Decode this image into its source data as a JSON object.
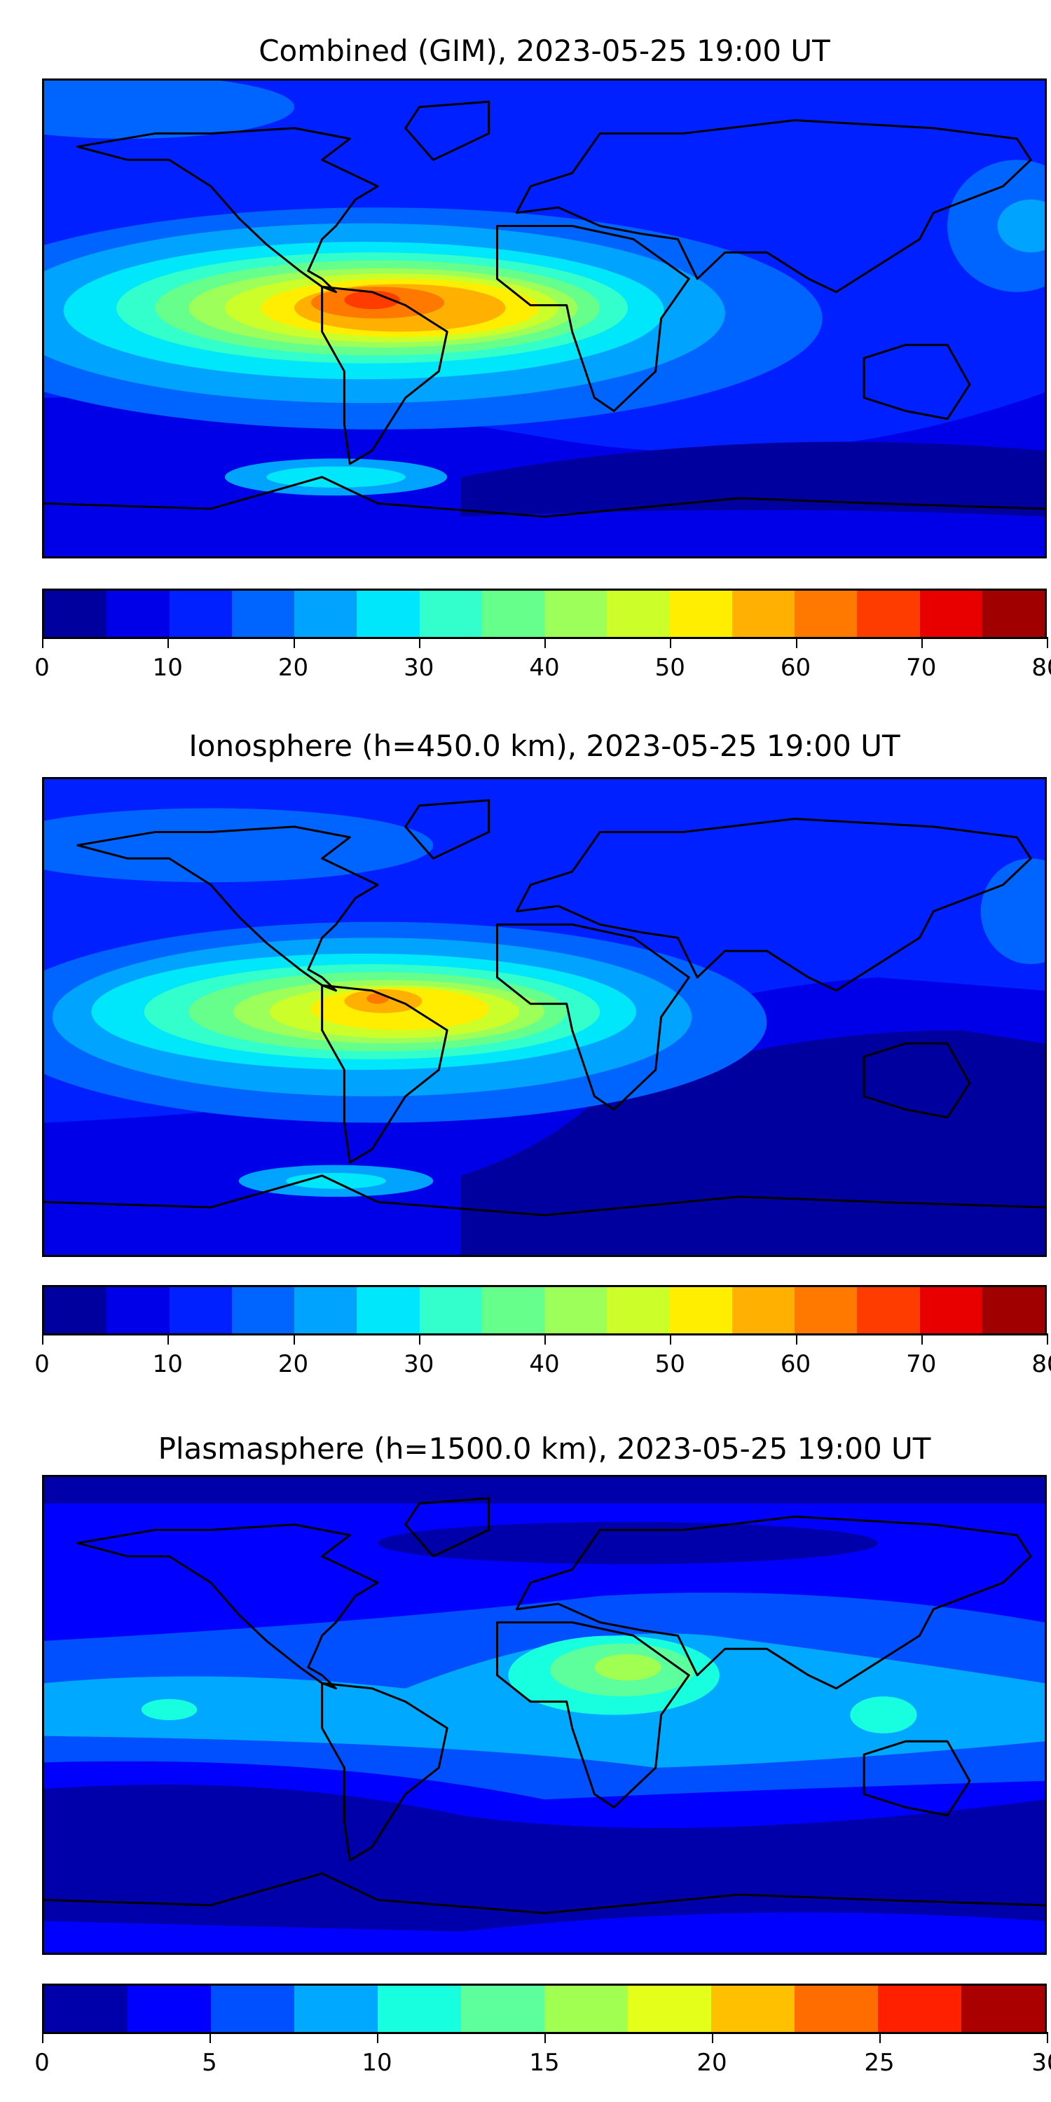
{
  "panels": [
    {
      "title": "Combined (GIM), 2023-05-25 19:00 UT",
      "colorbar": {
        "min": 0,
        "max": 80,
        "step": 5,
        "ticks": [
          "0",
          "10",
          "20",
          "30",
          "40",
          "50",
          "60",
          "70",
          "80"
        ],
        "colors": [
          "#00009f",
          "#0000e8",
          "#0020ff",
          "#0064ff",
          "#00a4ff",
          "#00e6fa",
          "#33ffcc",
          "#66ff8c",
          "#9cff5a",
          "#ccff2a",
          "#ffee00",
          "#ffb000",
          "#ff7800",
          "#ff3c00",
          "#e80000",
          "#a00000"
        ]
      }
    },
    {
      "title": "Ionosphere  (h=450.0 km), 2023-05-25 19:00 UT",
      "colorbar": {
        "min": 0,
        "max": 80,
        "step": 5,
        "ticks": [
          "0",
          "10",
          "20",
          "30",
          "40",
          "50",
          "60",
          "70",
          "80"
        ],
        "colors": [
          "#00009f",
          "#0000e8",
          "#0020ff",
          "#0064ff",
          "#00a4ff",
          "#00e6fa",
          "#33ffcc",
          "#66ff8c",
          "#9cff5a",
          "#ccff2a",
          "#ffee00",
          "#ffb000",
          "#ff7800",
          "#ff3c00",
          "#e80000",
          "#a00000"
        ]
      }
    },
    {
      "title": "Plasmasphere (h=1500.0 km), 2023-05-25 19:00 UT",
      "colorbar": {
        "min": 0,
        "max": 30,
        "step": 2.5,
        "ticks": [
          "0",
          "5",
          "10",
          "15",
          "20",
          "25",
          "30"
        ],
        "colors": [
          "#0000aa",
          "#0000ff",
          "#0050ff",
          "#00a8ff",
          "#18ffdf",
          "#5cff9c",
          "#a0ff50",
          "#e4ff1a",
          "#ffc000",
          "#ff6c00",
          "#ff2000",
          "#aa0000"
        ]
      }
    }
  ],
  "chart_data": [
    {
      "type": "heatmap",
      "title": "Combined (GIM), 2023-05-25 19:00 UT",
      "colorbar_range": [
        0,
        80
      ],
      "levels_step": 5,
      "peak_region": "South America / tropical Atlantic",
      "peak_level_range": [
        65,
        70
      ]
    },
    {
      "type": "heatmap",
      "title": "Ionosphere  (h=450.0 km), 2023-05-25 19:00 UT",
      "colorbar_range": [
        0,
        80
      ],
      "levels_step": 5,
      "peak_region": "Northern South America",
      "peak_level_range": [
        60,
        65
      ]
    },
    {
      "type": "heatmap",
      "title": "Plasmasphere (h=1500.0 km), 2023-05-25 19:00 UT",
      "colorbar_range": [
        0,
        30
      ],
      "levels_step": 2.5,
      "peak_region": "North Africa",
      "peak_level_range": [
        15,
        17.5
      ]
    }
  ]
}
